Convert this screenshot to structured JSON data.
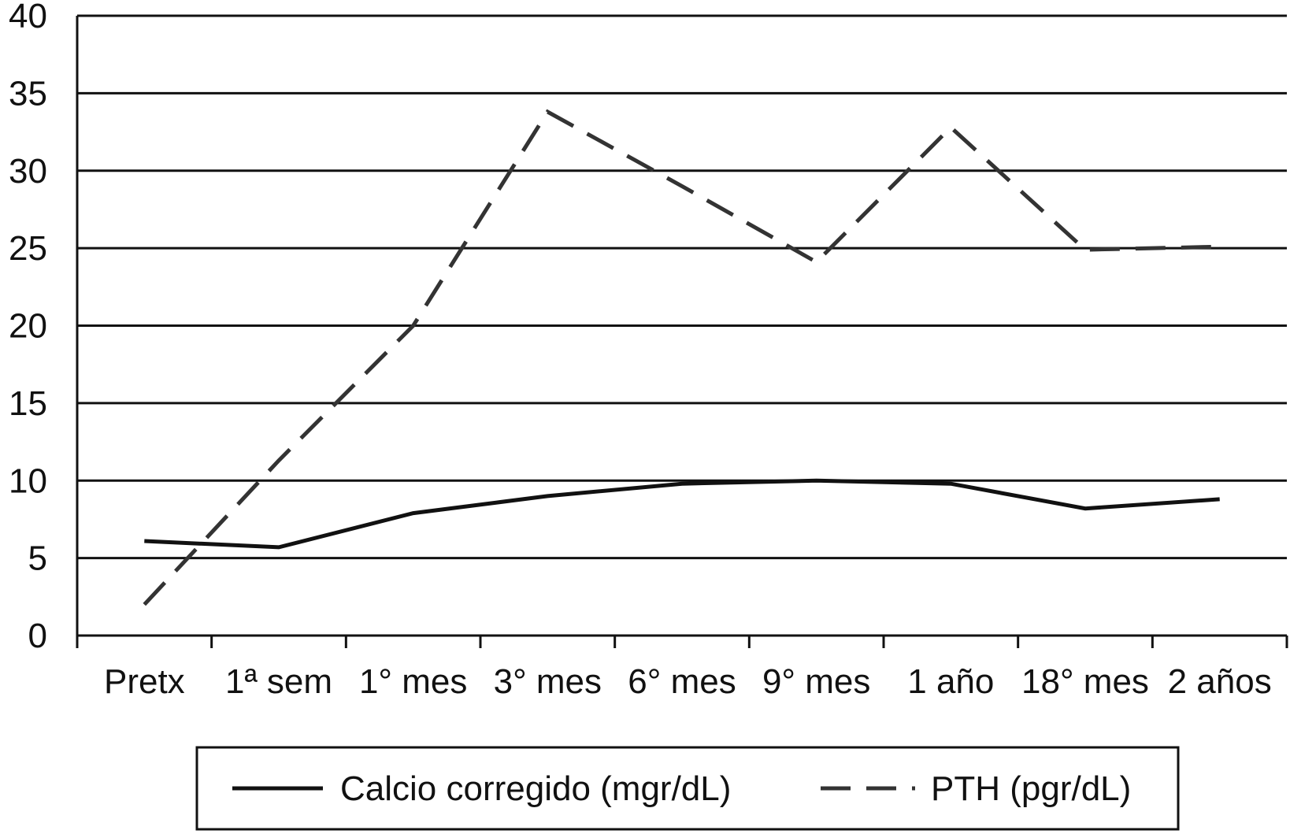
{
  "chart_data": {
    "type": "line",
    "categories": [
      "Pretx",
      "1ª sem",
      "1° mes",
      "3° mes",
      "6° mes",
      "9° mes",
      "1 año",
      "18° mes",
      "2 años"
    ],
    "y_ticks": [
      "0",
      "5",
      "10",
      "15",
      "20",
      "25",
      "30",
      "35",
      "40"
    ],
    "ylim": [
      0,
      40
    ],
    "grid": true,
    "legend_position": "bottom",
    "series": [
      {
        "name": "Calcio corregido (mgr/dL)",
        "style": "solid",
        "color": "#111111",
        "values": [
          6.1,
          5.7,
          7.9,
          9.0,
          9.8,
          10.0,
          9.8,
          8.2,
          8.8
        ]
      },
      {
        "name": "PTH (pgr/dL)",
        "style": "dashed",
        "color": "#333333",
        "values": [
          2.0,
          11.3,
          20.0,
          33.8,
          29.0,
          24.1,
          32.8,
          24.9,
          25.1
        ]
      }
    ]
  }
}
